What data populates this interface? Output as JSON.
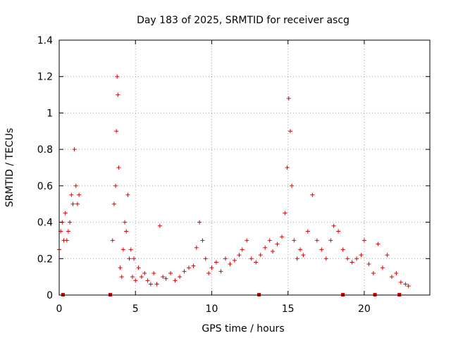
{
  "chart_data": {
    "type": "scatter",
    "title": "Day 183 of 2025, SRMTID for receiver ascg",
    "xlabel": "GPS time / hours",
    "ylabel": "SRMTID / TECUs",
    "xlim": [
      0,
      24.3
    ],
    "ylim": [
      0,
      1.4
    ],
    "xticks": [
      0,
      5,
      10,
      15,
      20
    ],
    "yticks": [
      0,
      0.2,
      0.4,
      0.6,
      0.8,
      1,
      1.2,
      1.4
    ],
    "ytick_labels": [
      "0",
      "0.2",
      "0.4",
      "0.6",
      "0.8",
      "1",
      "1.2",
      "1.4"
    ],
    "grid": true,
    "marker": "+",
    "color": "#e00000",
    "series": [
      {
        "name": "SRMTID",
        "x": [
          0.0,
          0.1,
          0.2,
          0.3,
          0.4,
          0.5,
          0.6,
          0.7,
          0.8,
          0.9,
          1.0,
          1.1,
          1.2,
          1.3,
          3.5,
          3.6,
          3.7,
          3.75,
          3.8,
          3.85,
          3.9,
          4.0,
          4.1,
          4.2,
          4.3,
          4.4,
          4.5,
          4.6,
          4.7,
          4.8,
          4.9,
          5.0,
          5.2,
          5.4,
          5.6,
          5.8,
          6.0,
          6.2,
          6.4,
          6.6,
          6.8,
          7.0,
          7.3,
          7.6,
          7.9,
          8.2,
          8.5,
          8.8,
          9.0,
          9.2,
          9.4,
          9.6,
          9.8,
          10.0,
          10.3,
          10.6,
          10.9,
          11.2,
          11.5,
          11.8,
          12.0,
          12.3,
          12.6,
          12.9,
          13.2,
          13.5,
          13.8,
          14.0,
          14.3,
          14.6,
          14.8,
          14.95,
          15.05,
          15.15,
          15.25,
          15.4,
          15.6,
          15.8,
          16.0,
          16.3,
          16.6,
          16.9,
          17.2,
          17.5,
          17.8,
          18.0,
          18.3,
          18.6,
          18.9,
          19.2,
          19.5,
          19.8,
          20.0,
          20.3,
          20.6,
          20.9,
          21.2,
          21.5,
          21.8,
          22.1,
          22.4,
          22.7,
          22.9
        ],
        "y": [
          0.25,
          0.35,
          0.4,
          0.3,
          0.45,
          0.3,
          0.35,
          0.4,
          0.55,
          0.5,
          0.8,
          0.6,
          0.5,
          0.55,
          0.3,
          0.5,
          0.6,
          0.9,
          1.2,
          1.1,
          0.7,
          0.15,
          0.1,
          0.25,
          0.4,
          0.35,
          0.55,
          0.2,
          0.25,
          0.1,
          0.2,
          0.08,
          0.15,
          0.1,
          0.12,
          0.08,
          0.06,
          0.12,
          0.06,
          0.38,
          0.1,
          0.09,
          0.12,
          0.08,
          0.1,
          0.13,
          0.15,
          0.16,
          0.26,
          0.4,
          0.3,
          0.2,
          0.12,
          0.15,
          0.18,
          0.13,
          0.2,
          0.17,
          0.19,
          0.22,
          0.25,
          0.3,
          0.2,
          0.18,
          0.22,
          0.26,
          0.3,
          0.24,
          0.28,
          0.32,
          0.45,
          0.7,
          1.08,
          0.9,
          0.6,
          0.3,
          0.2,
          0.25,
          0.22,
          0.35,
          0.55,
          0.3,
          0.25,
          0.2,
          0.3,
          0.38,
          0.35,
          0.25,
          0.2,
          0.18,
          0.2,
          0.22,
          0.3,
          0.17,
          0.12,
          0.28,
          0.15,
          0.22,
          0.1,
          0.12,
          0.07,
          0.06,
          0.05
        ]
      }
    ],
    "bottom_markers_x": [
      0.25,
      3.35,
      13.1,
      18.6,
      20.7,
      22.3
    ]
  }
}
